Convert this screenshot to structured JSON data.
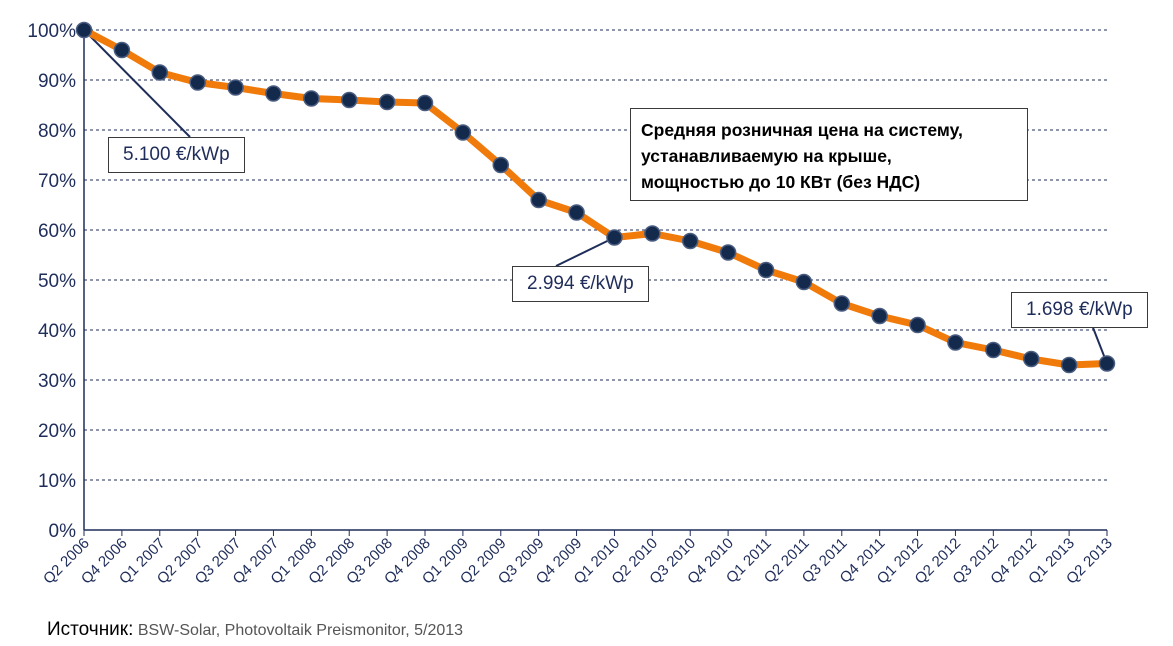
{
  "chart_data": {
    "type": "line",
    "categories": [
      "Q2 2006",
      "Q4 2006",
      "Q1 2007",
      "Q2 2007",
      "Q3 2007",
      "Q4 2007",
      "Q1 2008",
      "Q2 2008",
      "Q3 2008",
      "Q4 2008",
      "Q1 2009",
      "Q2 2009",
      "Q3 2009",
      "Q4 2009",
      "Q1 2010",
      "Q2 2010",
      "Q3 2010",
      "Q4 2010",
      "Q1 2011",
      "Q2 2011",
      "Q3 2011",
      "Q4 2011",
      "Q1 2012",
      "Q2 2012",
      "Q3 2012",
      "Q4 2012",
      "Q1 2013",
      "Q2 2013"
    ],
    "series": [
      {
        "name": "Средняя розничная цена на систему, устанавливаемую на крыше, мощностью до 10 КВт (без НДС)",
        "values": [
          100,
          96,
          91.5,
          89.5,
          88.5,
          87.3,
          86.3,
          86,
          85.6,
          85.4,
          79.5,
          73,
          66,
          63.5,
          58.5,
          59.3,
          57.8,
          55.5,
          52,
          49.6,
          45.3,
          42.8,
          41,
          37.5,
          36,
          34.2,
          33,
          33.3
        ],
        "line_color": "#f07a0a",
        "marker_color": "#142a4d"
      }
    ],
    "ylim": [
      0,
      100
    ],
    "yticks": [
      "0%",
      "10%",
      "20%",
      "30%",
      "40%",
      "50%",
      "60%",
      "70%",
      "80%",
      "90%",
      "100%"
    ],
    "grid": true,
    "xlabel": "",
    "ylabel": "",
    "annotations": [
      {
        "text": "5.100 €/kWp",
        "point_index": 0
      },
      {
        "text": "2.994 €/kWp",
        "point_index": 14
      },
      {
        "text": "1.698 €/kWp",
        "point_index": 27
      }
    ],
    "legend_text": [
      "Средняя розничная цена на систему,",
      "устанавливаемую на крыше,",
      "мощностью до 10 КВт (без НДС)"
    ]
  },
  "source": {
    "label": "Источник:",
    "text": " BSW-Solar, Photovoltaik Preismonitor, 5/2013"
  }
}
